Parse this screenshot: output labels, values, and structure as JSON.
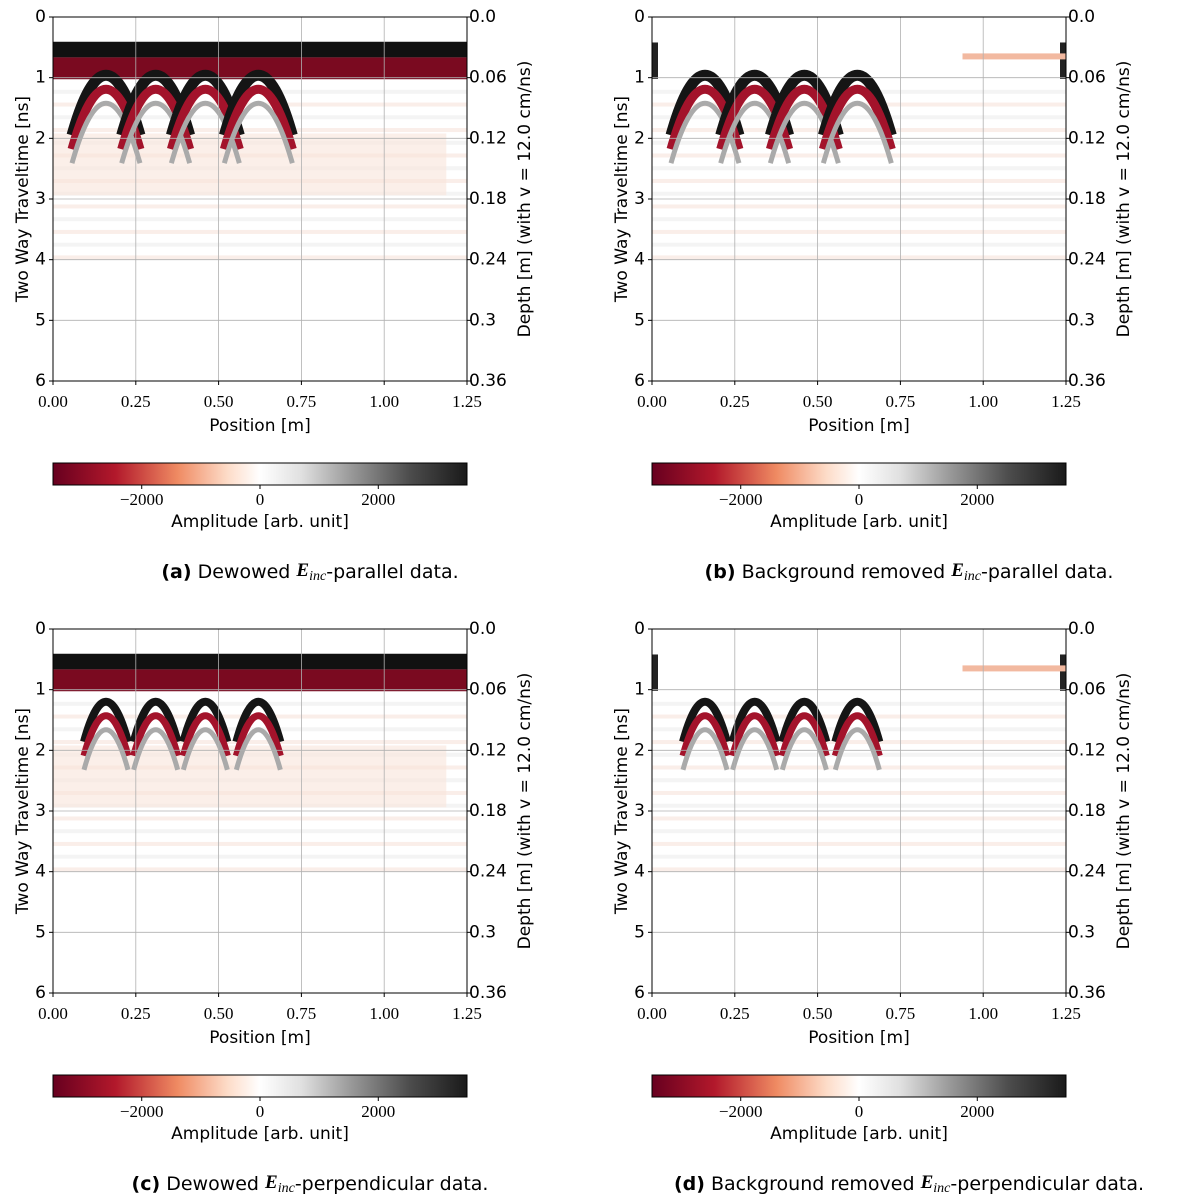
{
  "chart_data": [
    {
      "type": "heatmap",
      "xlabel": "Position [m]",
      "ylabel": "Two Way Traveltime [ns]",
      "y2label": "Depth [m] (with v = 12.0 cm/ns)",
      "xlim": [
        0,
        1.25
      ],
      "xticks": [
        {
          "value": 0,
          "label": "0.00"
        },
        {
          "value": 0.25,
          "label": "0.25"
        },
        {
          "value": 0.5,
          "label": "0.50"
        },
        {
          "value": 0.75,
          "label": "0.75"
        },
        {
          "value": 1,
          "label": "1.00"
        },
        {
          "value": 1.25,
          "label": "1.25"
        }
      ],
      "ylim": [
        0,
        6
      ],
      "y_inverted": true,
      "yticks": [
        0,
        1,
        2,
        3,
        4,
        5,
        6
      ],
      "y2lim": [
        0,
        0.36
      ],
      "y2ticks": [
        {
          "value": 0,
          "label": "0.0"
        },
        0.06,
        0.12,
        0.18,
        0.24,
        0.3,
        0.36
      ],
      "grid": true,
      "colorbar": {
        "label": "Amplitude [arb. unit]",
        "lim": [
          -3500,
          3500
        ],
        "ticks": [
          {
            "value": -2000,
            "label": "−2000"
          },
          0,
          2000
        ]
      },
      "caption": {
        "tag": "(a)",
        "before": "Dewowed",
        "symbol": "E",
        "subscript": "inc",
        "after": "-parallel data."
      }
    },
    {
      "type": "heatmap",
      "xlabel": "Position [m]",
      "ylabel": "Two Way Traveltime [ns]",
      "y2label": "Depth [m] (with v = 12.0 cm/ns)",
      "xlim": [
        0,
        1.25
      ],
      "xticks": [
        {
          "value": 0,
          "label": "0.00"
        },
        {
          "value": 0.25,
          "label": "0.25"
        },
        {
          "value": 0.5,
          "label": "0.50"
        },
        {
          "value": 0.75,
          "label": "0.75"
        },
        {
          "value": 1,
          "label": "1.00"
        },
        {
          "value": 1.25,
          "label": "1.25"
        }
      ],
      "ylim": [
        0,
        6
      ],
      "y_inverted": true,
      "yticks": [
        0,
        1,
        2,
        3,
        4,
        5,
        6
      ],
      "y2lim": [
        0,
        0.36
      ],
      "y2ticks": [
        {
          "value": 0,
          "label": "0.0"
        },
        0.06,
        0.12,
        0.18,
        0.24,
        0.3,
        0.36
      ],
      "grid": true,
      "colorbar": {
        "label": "Amplitude [arb. unit]",
        "lim": [
          -3500,
          3500
        ],
        "ticks": [
          {
            "value": -2000,
            "label": "−2000"
          },
          0,
          2000
        ]
      },
      "caption": {
        "tag": "(b)",
        "before": "Background removed",
        "symbol": "E",
        "subscript": "inc",
        "after": "-parallel data."
      }
    },
    {
      "type": "heatmap",
      "xlabel": "Position [m]",
      "ylabel": "Two Way Traveltime [ns]",
      "y2label": "Depth [m] (with v = 12.0 cm/ns)",
      "xlim": [
        0,
        1.25
      ],
      "xticks": [
        {
          "value": 0,
          "label": "0.00"
        },
        {
          "value": 0.25,
          "label": "0.25"
        },
        {
          "value": 0.5,
          "label": "0.50"
        },
        {
          "value": 0.75,
          "label": "0.75"
        },
        {
          "value": 1,
          "label": "1.00"
        },
        {
          "value": 1.25,
          "label": "1.25"
        }
      ],
      "ylim": [
        0,
        6
      ],
      "y_inverted": true,
      "yticks": [
        0,
        1,
        2,
        3,
        4,
        5,
        6
      ],
      "y2lim": [
        0,
        0.36
      ],
      "y2ticks": [
        {
          "value": 0,
          "label": "0.0"
        },
        0.06,
        0.12,
        0.18,
        0.24,
        0.3,
        0.36
      ],
      "grid": true,
      "colorbar": {
        "label": "Amplitude [arb. unit]",
        "lim": [
          -3500,
          3500
        ],
        "ticks": [
          {
            "value": -2000,
            "label": "−2000"
          },
          0,
          2000
        ]
      },
      "caption": {
        "tag": "(c)",
        "before": "Dewowed",
        "symbol": "E",
        "subscript": "inc",
        "after": "-perpendicular data."
      }
    },
    {
      "type": "heatmap",
      "xlabel": "Position [m]",
      "ylabel": "Two Way Traveltime [ns]",
      "y2label": "Depth [m] (with v = 12.0 cm/ns)",
      "xlim": [
        0,
        1.25
      ],
      "xticks": [
        {
          "value": 0,
          "label": "0.00"
        },
        {
          "value": 0.25,
          "label": "0.25"
        },
        {
          "value": 0.5,
          "label": "0.50"
        },
        {
          "value": 0.75,
          "label": "0.75"
        },
        {
          "value": 1,
          "label": "1.00"
        },
        {
          "value": 1.25,
          "label": "1.25"
        }
      ],
      "ylim": [
        0,
        6
      ],
      "y_inverted": true,
      "yticks": [
        0,
        1,
        2,
        3,
        4,
        5,
        6
      ],
      "y2lim": [
        0,
        0.36
      ],
      "y2ticks": [
        {
          "value": 0,
          "label": "0.0"
        },
        0.06,
        0.12,
        0.18,
        0.24,
        0.3,
        0.36
      ],
      "grid": true,
      "colorbar": {
        "label": "Amplitude [arb. unit]",
        "lim": [
          -3500,
          3500
        ],
        "ticks": [
          {
            "value": -2000,
            "label": "−2000"
          },
          0,
          2000
        ]
      },
      "caption": {
        "tag": "(d)",
        "before": "Background removed",
        "symbol": "E",
        "subscript": "inc",
        "after": "-perpendicular data."
      }
    }
  ]
}
